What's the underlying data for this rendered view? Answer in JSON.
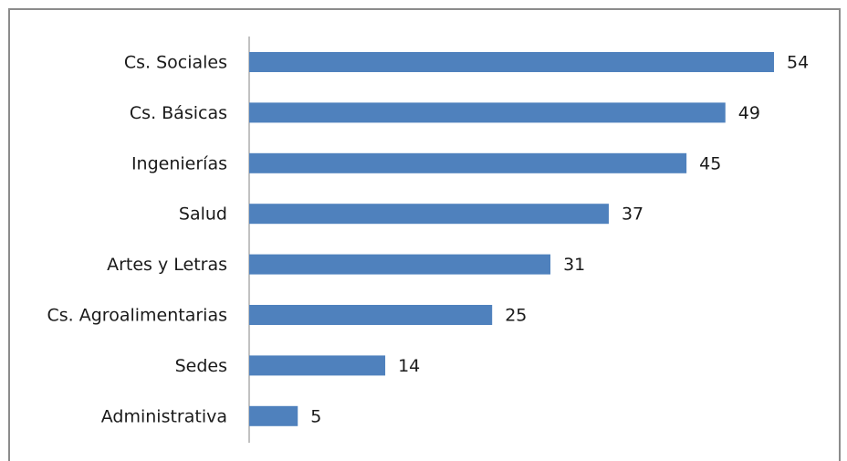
{
  "chart_data": {
    "type": "bar",
    "orientation": "horizontal",
    "categories": [
      "Cs. Sociales",
      "Cs. Básicas",
      "Ingenierías",
      "Salud",
      "Artes y Letras",
      "Cs. Agroalimentarias",
      "Sedes",
      "Administrativa"
    ],
    "values": [
      54,
      49,
      45,
      37,
      31,
      25,
      14,
      5
    ],
    "color": "#4f81bd"
  }
}
